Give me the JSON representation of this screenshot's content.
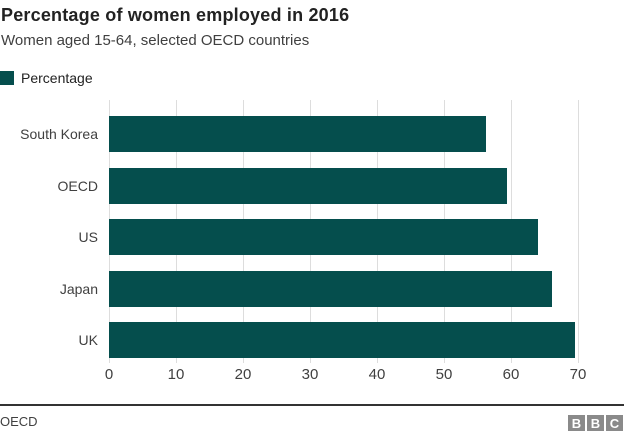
{
  "header": {
    "title": "Percentage of women employed in 2016",
    "subtitle": "Women aged 15-64, selected OECD countries"
  },
  "legend": {
    "label": "Percentage"
  },
  "colors": {
    "bar": "#054e4d",
    "gridline": "#dddddd",
    "text_dark": "#222222",
    "text_gray": "#404040",
    "logo_gray": "#8a8a8a"
  },
  "chart_data": {
    "type": "bar",
    "orientation": "horizontal",
    "title": "Percentage of women employed in 2016",
    "subtitle": "Women aged 15-64, selected OECD countries",
    "series_name": "Percentage",
    "categories": [
      "South Korea",
      "OECD",
      "US",
      "Japan",
      "UK"
    ],
    "values": [
      56.2,
      59.4,
      64.0,
      66.1,
      69.5
    ],
    "xlim": [
      0,
      70
    ],
    "xticks": [
      0,
      10,
      20,
      30,
      40,
      50,
      60,
      70
    ],
    "xlabel": "",
    "ylabel": "",
    "grid": true,
    "legend_position": "top-left",
    "bar_color": "#054e4d"
  },
  "footer": {
    "source": "OECD",
    "logo_blocks": [
      "B",
      "B",
      "C"
    ]
  }
}
